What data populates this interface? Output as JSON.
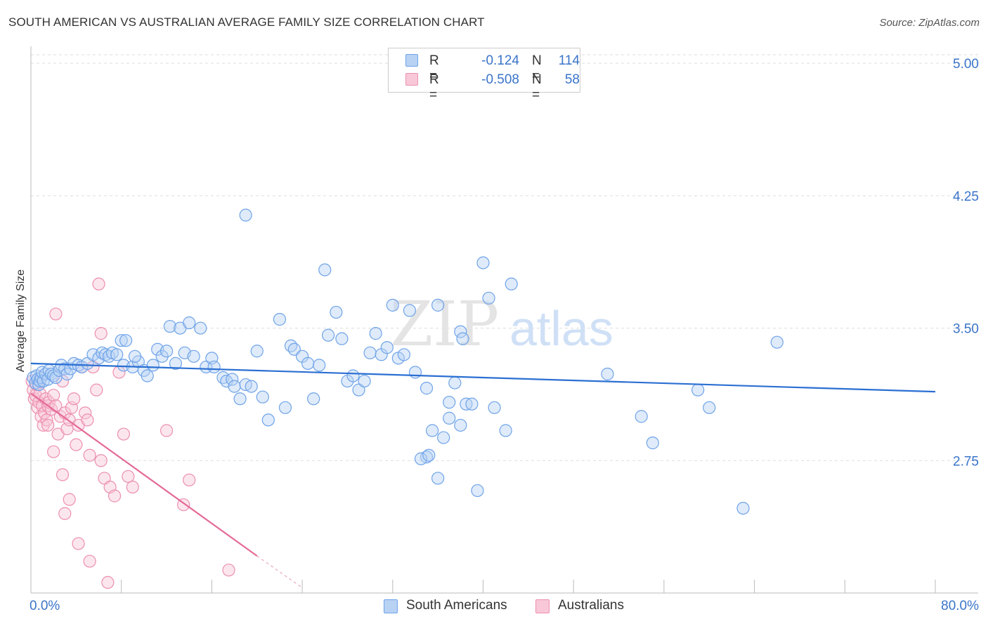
{
  "title": "SOUTH AMERICAN VS AUSTRALIAN AVERAGE FAMILY SIZE CORRELATION CHART",
  "source": "Source: ZipAtlas.com",
  "watermark": {
    "zip": "ZIP",
    "atlas": "atlas"
  },
  "legend": {
    "r_label": "R =",
    "n_label": "N =",
    "rows": [
      {
        "name": "South Americans",
        "r": "-0.124",
        "n": "114",
        "color": "#6fa3e8",
        "fill": "#b8d2f4"
      },
      {
        "name": "Australians",
        "r": "-0.508",
        "n": "58",
        "color": "#ec8fb0",
        "fill": "#f8c8d8"
      }
    ]
  },
  "colors": {
    "blue": "#3a74c9",
    "blue_line": "#2b6fd2",
    "pink_line": "#e46a97",
    "grid": "#dddddd",
    "tick_label": "#3a74c9"
  },
  "chart_data": {
    "type": "scatter",
    "title": "SOUTH AMERICAN VS AUSTRALIAN AVERAGE FAMILY SIZE CORRELATION CHART",
    "xlabel": "",
    "ylabel": "Average Family Size",
    "xlim": [
      0,
      80
    ],
    "ylim": [
      2.0,
      5.08
    ],
    "x_tick_labels": {
      "min": "0.0%",
      "max": "80.0%"
    },
    "y_ticks": [
      5.0,
      4.25,
      3.5,
      2.75
    ],
    "y_tick_labels": [
      "5.00",
      "4.25",
      "3.50",
      "2.75"
    ],
    "series": [
      {
        "name": "South Americans",
        "points": [
          [
            0.2,
            3.22
          ],
          [
            0.4,
            3.19
          ],
          [
            0.5,
            3.23
          ],
          [
            0.6,
            3.21
          ],
          [
            0.7,
            3.18
          ],
          [
            0.8,
            3.2
          ],
          [
            0.9,
            3.22
          ],
          [
            1.0,
            3.25
          ],
          [
            1.1,
            3.2
          ],
          [
            1.3,
            3.24
          ],
          [
            1.5,
            3.21
          ],
          [
            1.6,
            3.26
          ],
          [
            1.8,
            3.24
          ],
          [
            2.0,
            3.23
          ],
          [
            2.2,
            3.22
          ],
          [
            2.5,
            3.26
          ],
          [
            2.7,
            3.29
          ],
          [
            3.0,
            3.27
          ],
          [
            3.2,
            3.24
          ],
          [
            3.5,
            3.27
          ],
          [
            3.8,
            3.3
          ],
          [
            4.2,
            3.29
          ],
          [
            4.5,
            3.28
          ],
          [
            5.0,
            3.3
          ],
          [
            5.5,
            3.35
          ],
          [
            6.0,
            3.33
          ],
          [
            6.3,
            3.36
          ],
          [
            6.6,
            3.35
          ],
          [
            6.9,
            3.34
          ],
          [
            7.2,
            3.36
          ],
          [
            7.6,
            3.35
          ],
          [
            8.0,
            3.43
          ],
          [
            8.4,
            3.43
          ],
          [
            8.2,
            3.29
          ],
          [
            9.0,
            3.28
          ],
          [
            9.5,
            3.31
          ],
          [
            9.2,
            3.34
          ],
          [
            10.0,
            3.26
          ],
          [
            10.3,
            3.23
          ],
          [
            10.8,
            3.29
          ],
          [
            11.2,
            3.38
          ],
          [
            11.6,
            3.34
          ],
          [
            12.0,
            3.37
          ],
          [
            12.3,
            3.51
          ],
          [
            12.8,
            3.3
          ],
          [
            13.2,
            3.5
          ],
          [
            13.6,
            3.36
          ],
          [
            14.0,
            3.53
          ],
          [
            14.4,
            3.34
          ],
          [
            15.0,
            3.5
          ],
          [
            15.5,
            3.28
          ],
          [
            16.0,
            3.33
          ],
          [
            16.2,
            3.28
          ],
          [
            17.0,
            3.22
          ],
          [
            17.3,
            3.2
          ],
          [
            17.8,
            3.21
          ],
          [
            18.0,
            3.17
          ],
          [
            18.5,
            3.1
          ],
          [
            19.0,
            3.18
          ],
          [
            19.5,
            3.17
          ],
          [
            20.0,
            3.37
          ],
          [
            20.5,
            3.11
          ],
          [
            21.0,
            2.98
          ],
          [
            22.0,
            3.55
          ],
          [
            22.5,
            3.05
          ],
          [
            23.0,
            3.4
          ],
          [
            23.3,
            3.38
          ],
          [
            24.0,
            3.34
          ],
          [
            24.5,
            3.3
          ],
          [
            25.0,
            3.1
          ],
          [
            25.5,
            3.29
          ],
          [
            26.0,
            3.83
          ],
          [
            26.3,
            3.46
          ],
          [
            27.0,
            3.59
          ],
          [
            27.5,
            3.44
          ],
          [
            28.0,
            3.2
          ],
          [
            28.5,
            3.23
          ],
          [
            29.0,
            3.15
          ],
          [
            29.5,
            3.2
          ],
          [
            30.0,
            3.36
          ],
          [
            30.5,
            3.47
          ],
          [
            31.0,
            3.35
          ],
          [
            31.5,
            3.39
          ],
          [
            32.0,
            3.63
          ],
          [
            32.5,
            3.33
          ],
          [
            33.0,
            3.35
          ],
          [
            33.5,
            3.6
          ],
          [
            34.0,
            3.25
          ],
          [
            35.0,
            3.16
          ],
          [
            35.5,
            2.92
          ],
          [
            36.0,
            3.63
          ],
          [
            36.5,
            2.88
          ],
          [
            37.0,
            3.08
          ],
          [
            37.5,
            3.19
          ],
          [
            38.0,
            3.48
          ],
          [
            38.2,
            3.44
          ],
          [
            38.5,
            3.07
          ],
          [
            39.0,
            3.07
          ],
          [
            39.5,
            2.58
          ],
          [
            40.0,
            3.87
          ],
          [
            40.5,
            3.67
          ],
          [
            41.0,
            3.05
          ],
          [
            42.0,
            2.92
          ],
          [
            42.5,
            3.75
          ],
          [
            19.0,
            4.14
          ],
          [
            37.0,
            2.99
          ],
          [
            38.0,
            2.95
          ],
          [
            35.0,
            2.77
          ],
          [
            34.5,
            2.76
          ],
          [
            36.0,
            2.65
          ],
          [
            35.2,
            2.78
          ],
          [
            51.0,
            3.24
          ],
          [
            54.0,
            3.0
          ],
          [
            59.0,
            3.15
          ],
          [
            60.0,
            3.05
          ],
          [
            66.0,
            3.42
          ],
          [
            63.0,
            2.48
          ],
          [
            55.0,
            2.85
          ]
        ]
      },
      {
        "name": "Australians",
        "points": [
          [
            0.1,
            3.2
          ],
          [
            0.2,
            3.15
          ],
          [
            0.3,
            3.1
          ],
          [
            0.4,
            3.12
          ],
          [
            0.5,
            3.18
          ],
          [
            0.6,
            3.05
          ],
          [
            0.7,
            3.08
          ],
          [
            0.8,
            3.13
          ],
          [
            0.9,
            3.0
          ],
          [
            1.0,
            3.06
          ],
          [
            1.1,
            2.95
          ],
          [
            1.2,
            3.02
          ],
          [
            1.3,
            3.1
          ],
          [
            1.4,
            2.98
          ],
          [
            1.5,
            3.06
          ],
          [
            1.6,
            3.08
          ],
          [
            1.8,
            3.04
          ],
          [
            2.0,
            3.12
          ],
          [
            2.2,
            3.06
          ],
          [
            2.4,
            2.9
          ],
          [
            2.6,
            3.0
          ],
          [
            2.8,
            3.2
          ],
          [
            3.0,
            3.02
          ],
          [
            3.2,
            2.93
          ],
          [
            3.4,
            2.98
          ],
          [
            3.6,
            3.05
          ],
          [
            3.8,
            3.1
          ],
          [
            4.0,
            2.84
          ],
          [
            4.2,
            2.95
          ],
          [
            4.5,
            3.28
          ],
          [
            4.8,
            3.02
          ],
          [
            5.0,
            2.98
          ],
          [
            5.2,
            2.78
          ],
          [
            5.5,
            3.28
          ],
          [
            5.8,
            3.15
          ],
          [
            6.2,
            2.75
          ],
          [
            6.5,
            2.65
          ],
          [
            7.0,
            2.6
          ],
          [
            7.4,
            2.55
          ],
          [
            7.8,
            3.25
          ],
          [
            8.2,
            2.9
          ],
          [
            8.6,
            2.66
          ],
          [
            9.0,
            2.6
          ],
          [
            1.5,
            2.95
          ],
          [
            2.0,
            2.8
          ],
          [
            2.8,
            2.67
          ],
          [
            3.4,
            2.53
          ],
          [
            2.2,
            3.58
          ],
          [
            3.0,
            2.45
          ],
          [
            4.2,
            2.28
          ],
          [
            6.0,
            3.75
          ],
          [
            6.2,
            3.47
          ],
          [
            5.2,
            2.18
          ],
          [
            6.8,
            2.06
          ],
          [
            14.0,
            2.64
          ],
          [
            13.5,
            2.5
          ],
          [
            17.5,
            2.13
          ],
          [
            12.0,
            2.92
          ]
        ]
      }
    ],
    "trend_lines": [
      {
        "series": "South Americans",
        "x": [
          0,
          80
        ],
        "y": [
          3.3,
          3.14
        ]
      },
      {
        "series": "Australians",
        "x": [
          0,
          20.0
        ],
        "y": [
          3.13,
          2.21
        ],
        "dashed_extension_to": [
          24.0,
          2.03
        ]
      }
    ]
  },
  "ylabel_text": "Average Family Size"
}
